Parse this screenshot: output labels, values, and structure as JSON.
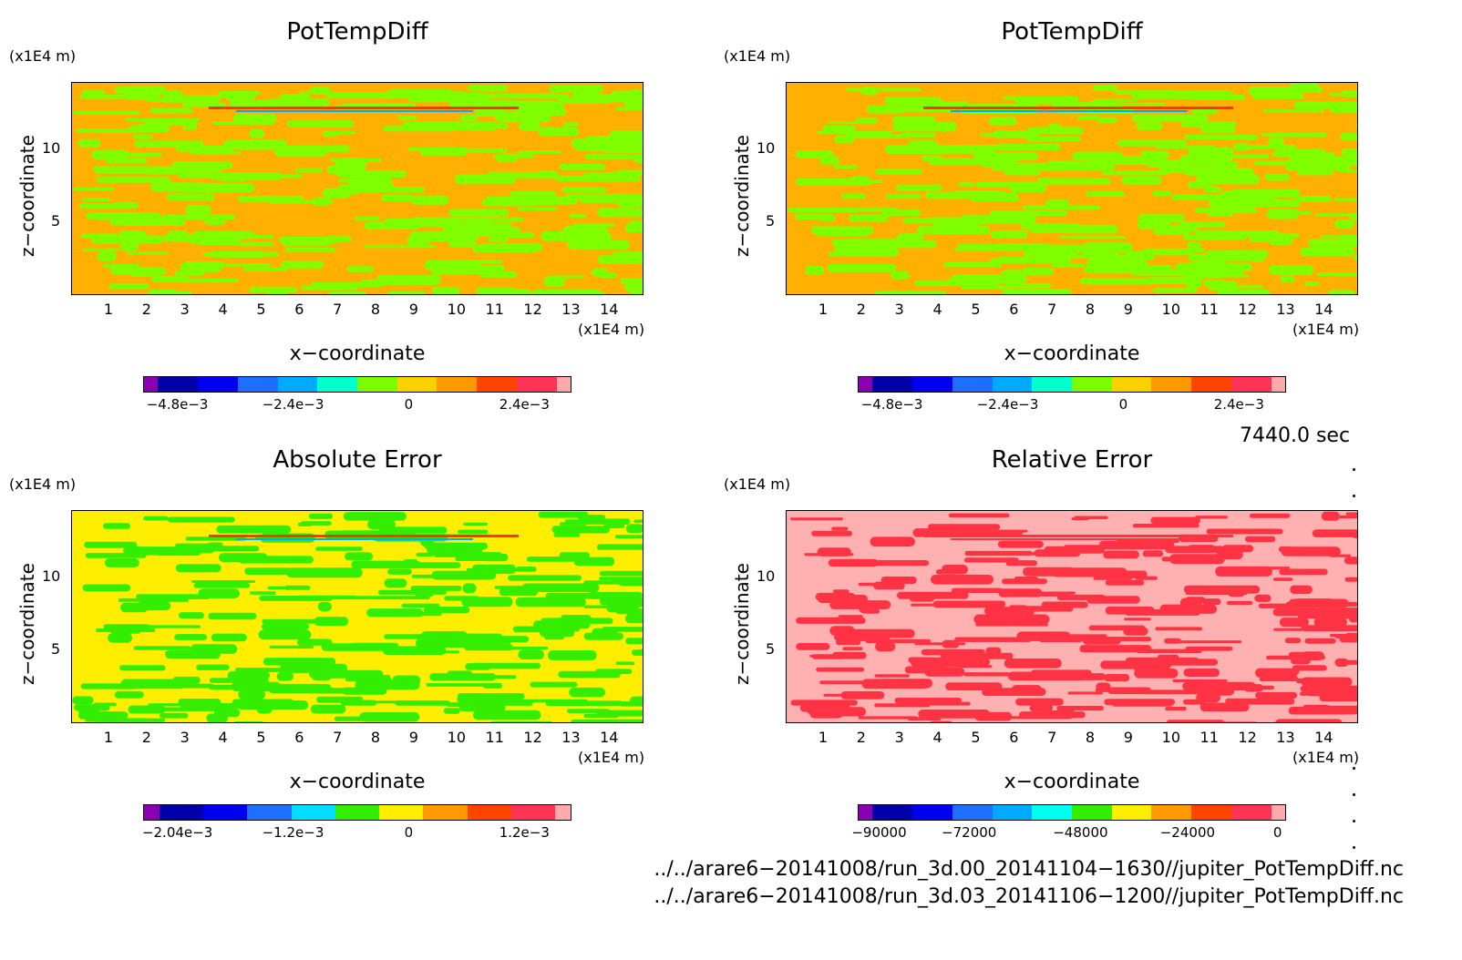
{
  "panels": [
    {
      "title": "PotTempDiff",
      "unit_y": "(x1E4 m)",
      "unit_x": "(x1E4 m)",
      "ylabel": "z−coordinate",
      "xlabel": "x−coordinate",
      "yticks": [
        "5",
        "10"
      ],
      "xticks": [
        "1",
        "2",
        "3",
        "4",
        "5",
        "6",
        "7",
        "8",
        "9",
        "10",
        "11",
        "12",
        "13",
        "14"
      ],
      "colorbar_colors": [
        "#8a00b0",
        "#0000a8",
        "#0000f0",
        "#1e6eff",
        "#00aaff",
        "#00ffcc",
        "#7cfc00",
        "#ffd000",
        "#ff9900",
        "#ff4400",
        "#ff3355",
        "#ffaaaa"
      ],
      "colorbar_labels": [
        "−4.8e−3",
        "−2.4e−3",
        "0",
        "2.4e−3"
      ],
      "field_colors": [
        "#ffb000",
        "#80ff00"
      ]
    },
    {
      "title": "PotTempDiff",
      "unit_y": "(x1E4 m)",
      "unit_x": "(x1E4 m)",
      "ylabel": "z−coordinate",
      "xlabel": "x−coordinate",
      "yticks": [
        "5",
        "10"
      ],
      "xticks": [
        "1",
        "2",
        "3",
        "4",
        "5",
        "6",
        "7",
        "8",
        "9",
        "10",
        "11",
        "12",
        "13",
        "14"
      ],
      "colorbar_colors": [
        "#8a00b0",
        "#0000a8",
        "#0000f0",
        "#1e6eff",
        "#00aaff",
        "#00ffcc",
        "#7cfc00",
        "#ffd000",
        "#ff9900",
        "#ff4400",
        "#ff3355",
        "#ffaaaa"
      ],
      "colorbar_labels": [
        "−4.8e−3",
        "−2.4e−3",
        "0",
        "2.4e−3"
      ],
      "field_colors": [
        "#ffb000",
        "#80ff00"
      ]
    },
    {
      "title": "Absolute Error",
      "unit_y": "(x1E4 m)",
      "unit_x": "(x1E4 m)",
      "ylabel": "z−coordinate",
      "xlabel": "x−coordinate",
      "yticks": [
        "5",
        "10"
      ],
      "xticks": [
        "1",
        "2",
        "3",
        "4",
        "5",
        "6",
        "7",
        "8",
        "9",
        "10",
        "11",
        "12",
        "13",
        "14"
      ],
      "colorbar_colors": [
        "#8a00b0",
        "#0000a8",
        "#0000f0",
        "#1e6eff",
        "#00ddff",
        "#33ee00",
        "#ffee00",
        "#ff9900",
        "#ff4400",
        "#ff3355",
        "#ffaaaa"
      ],
      "colorbar_labels": [
        "−2.04e−3",
        "−1.2e−3",
        "0",
        "1.2e−3"
      ],
      "field_colors": [
        "#ffee00",
        "#33ee00"
      ]
    },
    {
      "title": "Relative Error",
      "unit_y": "(x1E4 m)",
      "unit_x": "(x1E4 m)",
      "ylabel": "z−coordinate",
      "xlabel": "x−coordinate",
      "yticks": [
        "5",
        "10"
      ],
      "xticks": [
        "1",
        "2",
        "3",
        "4",
        "5",
        "6",
        "7",
        "8",
        "9",
        "10",
        "11",
        "12",
        "13",
        "14"
      ],
      "colorbar_colors": [
        "#8a00b0",
        "#0000a8",
        "#0000f0",
        "#1e6eff",
        "#00aaff",
        "#00ffee",
        "#33ee00",
        "#ffee00",
        "#ff9900",
        "#ff4400",
        "#ff3355",
        "#ffaaaa"
      ],
      "colorbar_labels": [
        "−90000",
        "−72000",
        "−48000",
        "−24000",
        "0"
      ],
      "field_colors": [
        "#ffb0b0",
        "#ff3344"
      ]
    }
  ],
  "time_label": "7440.0 sec",
  "footer_lines": [
    "../../arare6−20141008/run_3d.00_20141104−1630//jupiter_PotTempDiff.nc",
    "../../arare6−20141008/run_3d.03_20141106−1200//jupiter_PotTempDiff.nc"
  ],
  "chart_data": [
    {
      "type": "heatmap",
      "title": "PotTempDiff",
      "xlabel": "x−coordinate",
      "ylabel": "z−coordinate",
      "xlim": [
        0,
        15
      ],
      "ylim": [
        0,
        14.5
      ],
      "color_scale": [
        -0.0054,
        0.0036
      ]
    },
    {
      "type": "heatmap",
      "title": "PotTempDiff",
      "xlabel": "x−coordinate",
      "ylabel": "z−coordinate",
      "xlim": [
        0,
        15
      ],
      "ylim": [
        0,
        14.5
      ],
      "color_scale": [
        -0.0054,
        0.0036
      ]
    },
    {
      "type": "heatmap",
      "title": "Absolute Error",
      "xlabel": "x−coordinate",
      "ylabel": "z−coordinate",
      "xlim": [
        0,
        15
      ],
      "ylim": [
        0,
        14.5
      ],
      "color_scale": [
        -0.00204,
        0.0018
      ]
    },
    {
      "type": "heatmap",
      "title": "Relative Error",
      "xlabel": "x−coordinate",
      "ylabel": "z−coordinate",
      "xlim": [
        0,
        15
      ],
      "ylim": [
        0,
        14.5
      ],
      "color_scale": [
        -90000,
        6000
      ]
    }
  ]
}
